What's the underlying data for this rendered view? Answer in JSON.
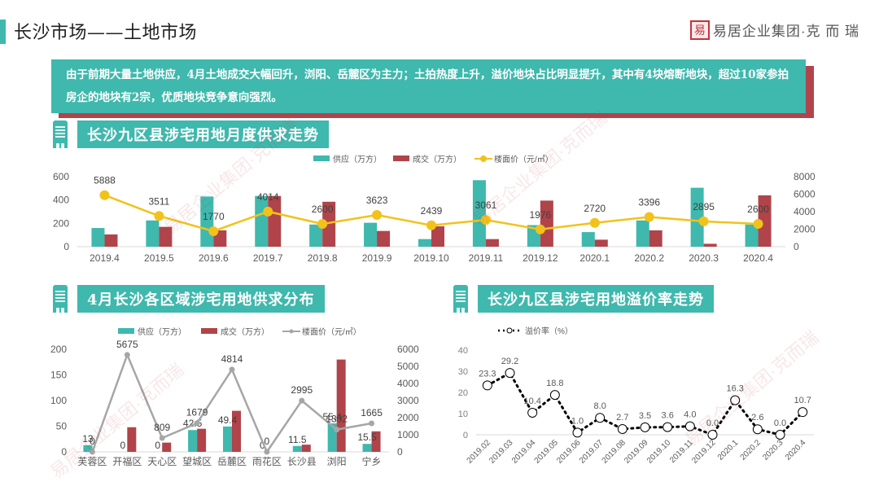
{
  "header": {
    "title": "长沙市场——土地市场",
    "logo_mark": "易",
    "logo_text": "易居企业集团·克 而 瑞"
  },
  "summary": {
    "text": "由于前期大量土地供应，4月土地成交大幅回升，浏阳、岳麓区为主力；土拍热度上升，溢价地块占比明显提升，其中有4块熔断地块，超过10家参拍房企的地块有2宗，优质地块竞争意向强烈。"
  },
  "sections": {
    "monthly": {
      "title": "长沙九区县涉宅用地月度供求走势"
    },
    "district": {
      "title": "4月长沙各区域涉宅用地供求分布"
    },
    "premium": {
      "title": "长沙九区县涉宅用地溢价率走势"
    }
  },
  "colors": {
    "supply": "#3fb8ad",
    "deal": "#b0444a",
    "price_line": "#f2c21b",
    "district_line": "#a6a6a6",
    "premium_line": "#000000"
  },
  "chart_data": [
    {
      "type": "bar",
      "title": "长沙九区县涉宅用地月度供求走势",
      "categories": [
        "2019.4",
        "2019.5",
        "2019.6",
        "2019.7",
        "2019.8",
        "2019.9",
        "2019.10",
        "2019.11",
        "2019.12",
        "2020.1",
        "2020.2",
        "2020.3",
        "2020.4"
      ],
      "series": [
        {
          "name": "供应（万方）",
          "type": "bar",
          "axis": "left",
          "values": [
            160,
            225,
            430,
            435,
            190,
            205,
            65,
            570,
            185,
            125,
            225,
            505,
            190
          ]
        },
        {
          "name": "成交（万方）",
          "type": "bar",
          "axis": "left",
          "values": [
            105,
            170,
            140,
            435,
            385,
            135,
            175,
            65,
            395,
            60,
            140,
            25,
            440
          ]
        },
        {
          "name": "楼面价（元/㎡）",
          "type": "line",
          "axis": "right",
          "values": [
            5888,
            3511,
            1770,
            4014,
            2600,
            3623,
            2439,
            3061,
            1976,
            2720,
            3396,
            2895,
            2600
          ]
        }
      ],
      "ylim_left": [
        0,
        600
      ],
      "yticks_left": [
        0,
        200,
        400,
        600
      ],
      "ylim_right": [
        0,
        8000
      ],
      "yticks_right": [
        0,
        2000,
        4000,
        6000,
        8000
      ],
      "legend_position": "top"
    },
    {
      "type": "bar",
      "title": "4月长沙各区域涉宅用地供求分布",
      "categories": [
        "芙蓉区",
        "开福区",
        "天心区",
        "望城区",
        "岳麓区",
        "雨花区",
        "长沙县",
        "浏阳",
        "宁乡"
      ],
      "series": [
        {
          "name": "供应（万方）",
          "type": "bar",
          "axis": "left",
          "values": [
            13,
            0,
            0,
            42.5,
            49.4,
            0,
            11.5,
            55.4,
            15.5
          ]
        },
        {
          "name": "成交（万方）",
          "type": "bar",
          "axis": "left",
          "values": [
            0,
            48,
            18,
            45,
            80,
            0,
            14,
            180,
            40
          ]
        },
        {
          "name": "楼面价（元/㎡）",
          "type": "line",
          "axis": "right",
          "values": [
            0,
            5675,
            809,
            1679,
            4814,
            0,
            2995,
            1302,
            1665
          ]
        }
      ],
      "ylim_left": [
        0,
        200
      ],
      "yticks_left": [
        0,
        50,
        100,
        150,
        200
      ],
      "ylim_right": [
        0,
        6000
      ],
      "yticks_right": [
        0,
        1000,
        2000,
        3000,
        4000,
        5000,
        6000
      ],
      "legend_position": "top"
    },
    {
      "type": "line",
      "title": "长沙九区县涉宅用地溢价率走势",
      "categories": [
        "2019.02",
        "2019.03",
        "2019.04",
        "2019.05",
        "2019.06",
        "2019.07",
        "2019.08",
        "2019.09",
        "2019.10",
        "2019.11",
        "2019.12",
        "2020.1",
        "2020.2",
        "2020.3",
        "2020.4"
      ],
      "series": [
        {
          "name": "溢价率（%）",
          "values": [
            23.3,
            29.2,
            10.4,
            18.8,
            1.0,
            8.0,
            2.7,
            3.5,
            3.6,
            4.0,
            0.0,
            16.3,
            2.6,
            0.0,
            10.7
          ]
        }
      ],
      "ylim": [
        0,
        40
      ],
      "yticks": [
        0,
        10,
        20,
        30,
        40
      ],
      "legend_position": "top-left"
    }
  ]
}
